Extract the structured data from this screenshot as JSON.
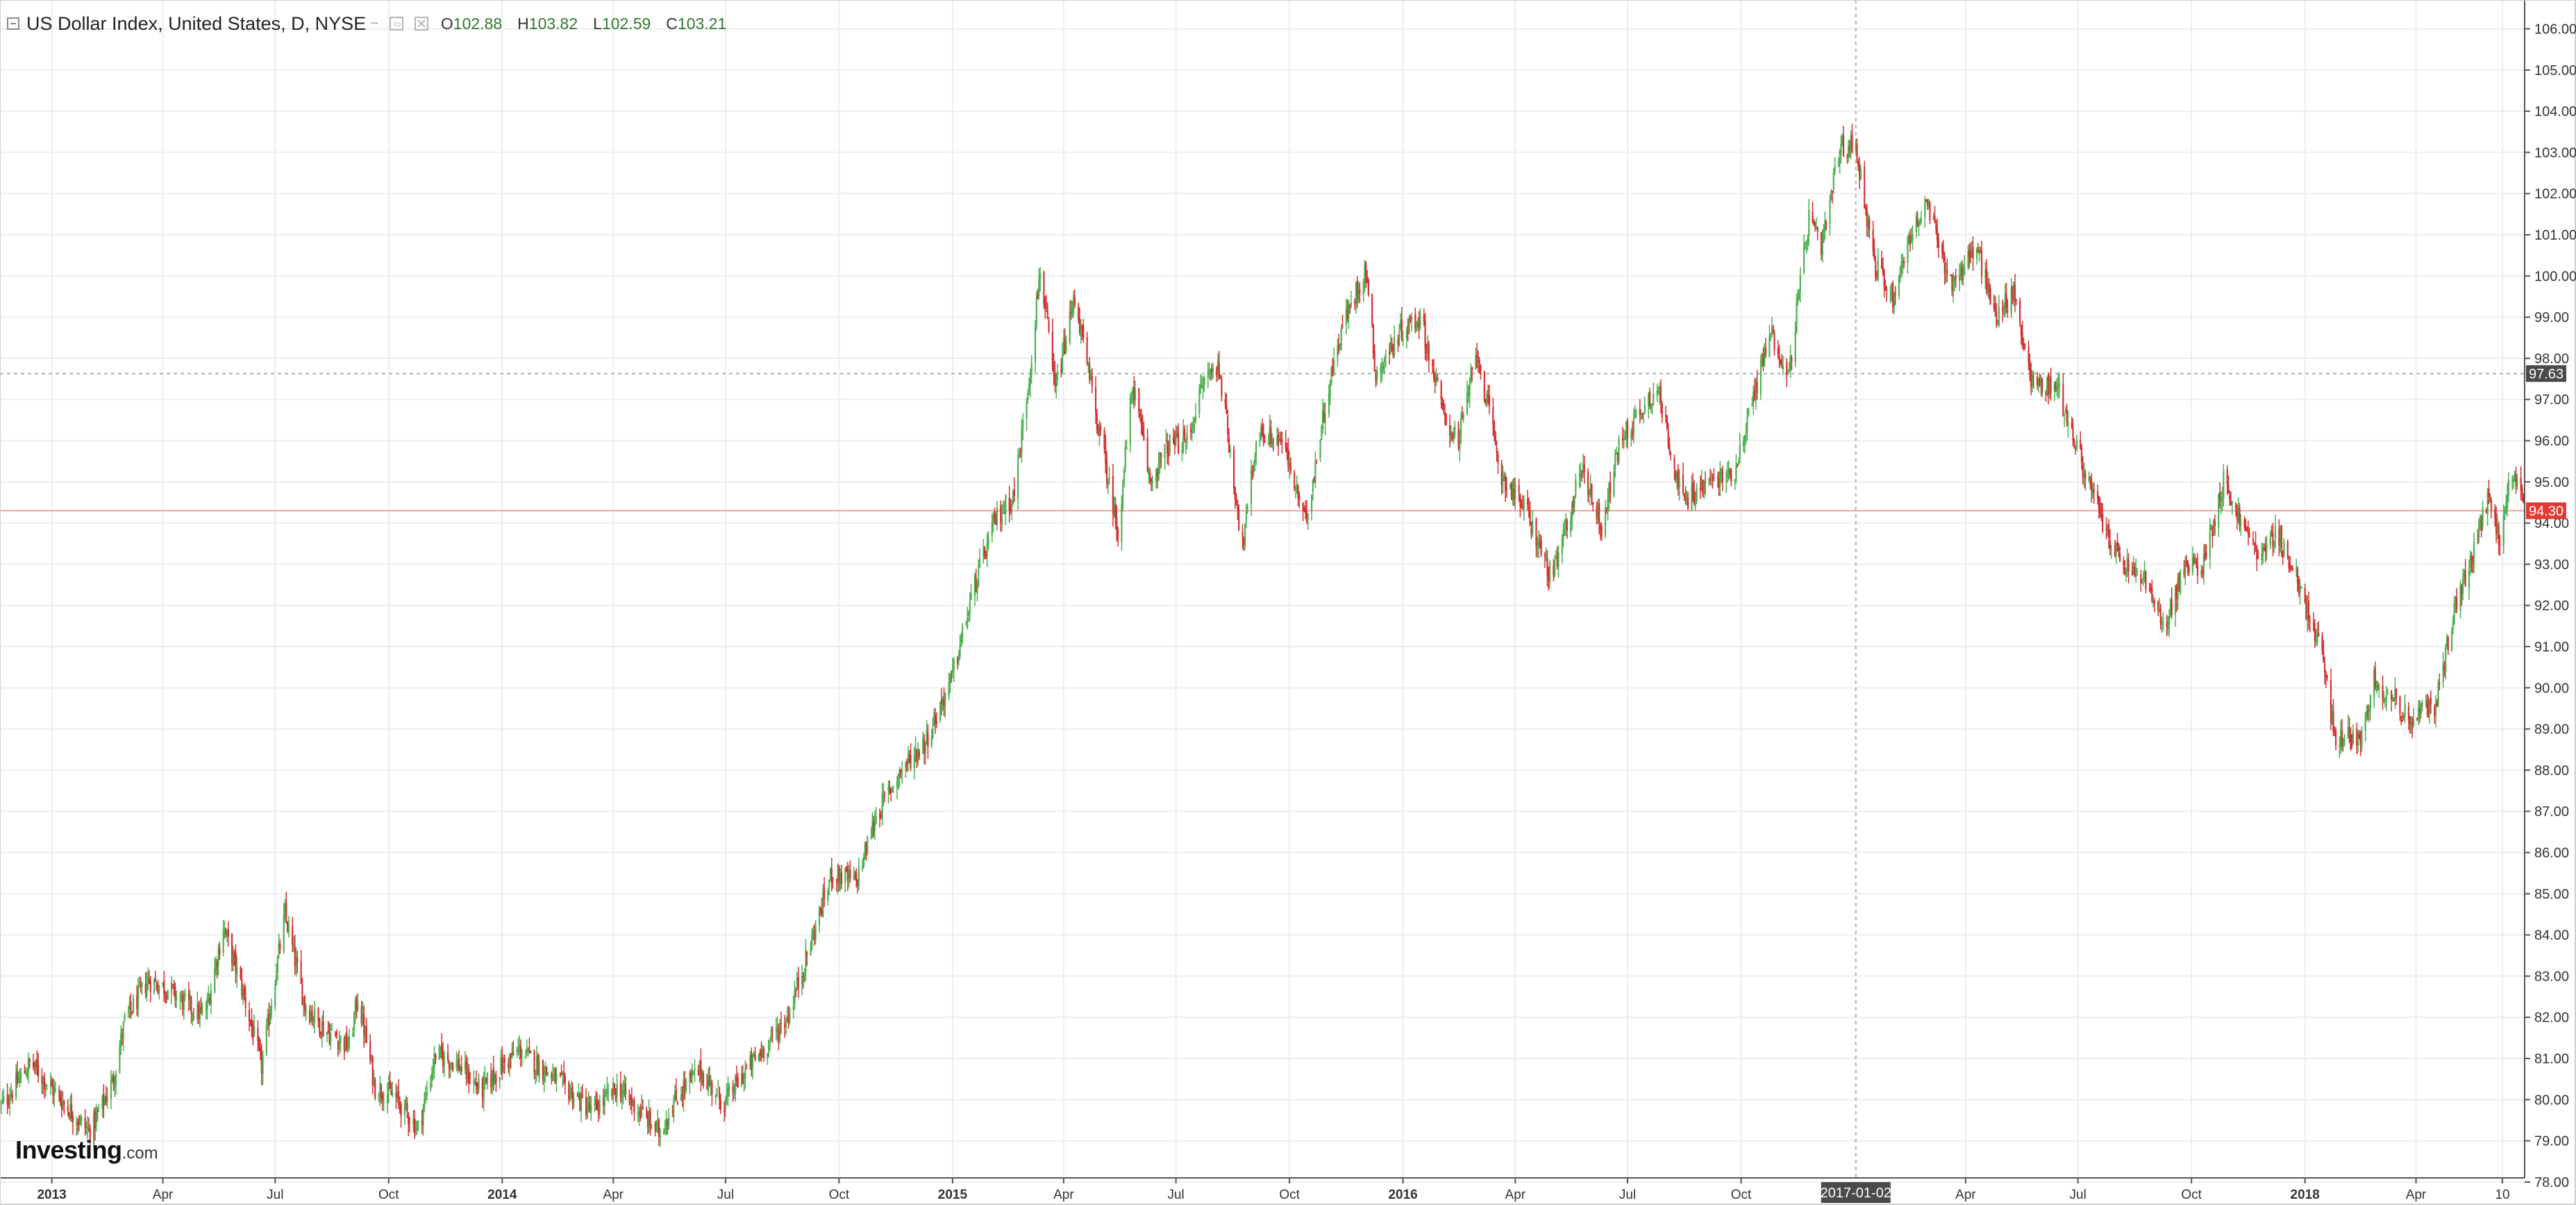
{
  "header": {
    "title": "US Dollar Index, United States, D, NYSE",
    "title_suffix": "~",
    "ohlc": [
      {
        "key": "O",
        "value": "102.88"
      },
      {
        "key": "H",
        "value": "103.82"
      },
      {
        "key": "L",
        "value": "102.59"
      },
      {
        "key": "C",
        "value": "103.21"
      }
    ]
  },
  "logo": {
    "brand": "Investing",
    "domain": ".com"
  },
  "colors": {
    "up": "#4caf50",
    "down": "#d32f2f",
    "grid": "#eeeeee",
    "last_price_line": "#f5a3a3",
    "last_price_bg": "#e53935",
    "crosshair_label_bg": "#4a4a4a"
  },
  "chart_data": {
    "type": "candlestick",
    "title": "US Dollar Index, United States, D, NYSE",
    "x_tick_labels": [
      {
        "label": "2013",
        "date": "2013-01-01",
        "bold": true
      },
      {
        "label": "Apr",
        "date": "2013-04-01"
      },
      {
        "label": "Jul",
        "date": "2013-07-01"
      },
      {
        "label": "Oct",
        "date": "2013-10-01"
      },
      {
        "label": "2014",
        "date": "2014-01-01",
        "bold": true
      },
      {
        "label": "Apr",
        "date": "2014-04-01"
      },
      {
        "label": "Jul",
        "date": "2014-07-01"
      },
      {
        "label": "Oct",
        "date": "2014-10-01"
      },
      {
        "label": "2015",
        "date": "2015-01-01",
        "bold": true
      },
      {
        "label": "Apr",
        "date": "2015-04-01"
      },
      {
        "label": "Jul",
        "date": "2015-07-01"
      },
      {
        "label": "Oct",
        "date": "2015-10-01"
      },
      {
        "label": "2016",
        "date": "2016-01-01",
        "bold": true
      },
      {
        "label": "Apr",
        "date": "2016-04-01"
      },
      {
        "label": "Jul",
        "date": "2016-07-01"
      },
      {
        "label": "Oct",
        "date": "2016-10-01"
      },
      {
        "label": "Apr",
        "date": "2017-04-01"
      },
      {
        "label": "Jul",
        "date": "2017-07-01"
      },
      {
        "label": "Oct",
        "date": "2017-10-01"
      },
      {
        "label": "2018",
        "date": "2018-01-01",
        "bold": true
      },
      {
        "label": "Apr",
        "date": "2018-04-01"
      },
      {
        "label": "10",
        "date": "2018-06-10"
      }
    ],
    "x_range": [
      "2012-11-20",
      "2018-06-28"
    ],
    "y_range": [
      78.1,
      106.7
    ],
    "y_ticks": [
      "78.00",
      "79.00",
      "80.00",
      "81.00",
      "82.00",
      "83.00",
      "84.00",
      "85.00",
      "86.00",
      "87.00",
      "88.00",
      "89.00",
      "90.00",
      "91.00",
      "92.00",
      "93.00",
      "94.00",
      "95.00",
      "96.00",
      "97.00",
      "98.00",
      "99.00",
      "100.00",
      "101.00",
      "102.00",
      "103.00",
      "104.00",
      "105.00",
      "106.00"
    ],
    "last_price": "94.30",
    "crosshair": {
      "date": "2017-01-02",
      "date_label": "2017-01-02",
      "price": "97.63"
    },
    "path_anchors": [
      [
        "2012-11-20",
        79.8
      ],
      [
        "2012-12-15",
        80.9
      ],
      [
        "2012-12-31",
        80.3
      ],
      [
        "2013-01-20",
        79.6
      ],
      [
        "2013-02-01",
        79.2
      ],
      [
        "2013-02-20",
        80.5
      ],
      [
        "2013-03-01",
        81.9
      ],
      [
        "2013-03-20",
        82.9
      ],
      [
        "2013-04-05",
        82.7
      ],
      [
        "2013-04-20",
        82.3
      ],
      [
        "2013-05-05",
        82.0
      ],
      [
        "2013-05-20",
        84.2
      ],
      [
        "2013-06-05",
        82.6
      ],
      [
        "2013-06-20",
        80.8
      ],
      [
        "2013-07-01",
        83.0
      ],
      [
        "2013-07-09",
        84.5
      ],
      [
        "2013-07-25",
        82.3
      ],
      [
        "2013-08-10",
        81.7
      ],
      [
        "2013-08-30",
        81.3
      ],
      [
        "2013-09-06",
        82.5
      ],
      [
        "2013-09-20",
        80.3
      ],
      [
        "2013-10-05",
        80.1
      ],
      [
        "2013-10-25",
        79.3
      ],
      [
        "2013-11-08",
        81.1
      ],
      [
        "2013-11-25",
        80.9
      ],
      [
        "2013-12-15",
        80.2
      ],
      [
        "2013-12-31",
        80.8
      ],
      [
        "2014-01-15",
        81.2
      ],
      [
        "2014-02-05",
        80.7
      ],
      [
        "2014-02-25",
        80.2
      ],
      [
        "2014-03-15",
        79.7
      ],
      [
        "2014-04-05",
        80.3
      ],
      [
        "2014-04-20",
        79.8
      ],
      [
        "2014-05-08",
        79.2
      ],
      [
        "2014-05-25",
        80.2
      ],
      [
        "2014-06-10",
        80.7
      ],
      [
        "2014-06-30",
        79.9
      ],
      [
        "2014-07-15",
        80.6
      ],
      [
        "2014-08-05",
        81.4
      ],
      [
        "2014-08-20",
        82.0
      ],
      [
        "2014-09-05",
        83.5
      ],
      [
        "2014-09-25",
        85.5
      ],
      [
        "2014-10-15",
        85.3
      ],
      [
        "2014-10-31",
        86.9
      ],
      [
        "2014-11-20",
        88.0
      ],
      [
        "2014-12-10",
        88.7
      ],
      [
        "2014-12-31",
        90.2
      ],
      [
        "2015-01-20",
        92.6
      ],
      [
        "2015-02-05",
        94.1
      ],
      [
        "2015-02-20",
        94.7
      ],
      [
        "2015-03-05",
        97.8
      ],
      [
        "2015-03-13",
        100.2
      ],
      [
        "2015-03-25",
        97.2
      ],
      [
        "2015-04-10",
        99.5
      ],
      [
        "2015-04-25",
        97.0
      ],
      [
        "2015-05-15",
        93.8
      ],
      [
        "2015-05-27",
        97.4
      ],
      [
        "2015-06-10",
        95.0
      ],
      [
        "2015-06-25",
        95.9
      ],
      [
        "2015-07-10",
        96.0
      ],
      [
        "2015-07-25",
        97.6
      ],
      [
        "2015-08-05",
        97.8
      ],
      [
        "2015-08-24",
        93.4
      ],
      [
        "2015-09-05",
        96.2
      ],
      [
        "2015-09-25",
        96.0
      ],
      [
        "2015-10-14",
        94.0
      ],
      [
        "2015-10-30",
        96.9
      ],
      [
        "2015-11-12",
        98.7
      ],
      [
        "2015-12-02",
        100.2
      ],
      [
        "2015-12-10",
        97.6
      ],
      [
        "2015-12-31",
        98.7
      ],
      [
        "2016-01-15",
        99.0
      ],
      [
        "2016-02-03",
        96.6
      ],
      [
        "2016-02-15",
        96.0
      ],
      [
        "2016-03-01",
        98.2
      ],
      [
        "2016-03-20",
        95.2
      ],
      [
        "2016-04-10",
        94.3
      ],
      [
        "2016-05-01",
        92.6
      ],
      [
        "2016-05-25",
        95.4
      ],
      [
        "2016-06-10",
        93.9
      ],
      [
        "2016-06-25",
        96.0
      ],
      [
        "2016-07-25",
        97.3
      ],
      [
        "2016-08-15",
        94.5
      ],
      [
        "2016-09-05",
        95.0
      ],
      [
        "2016-09-25",
        95.2
      ],
      [
        "2016-10-25",
        98.7
      ],
      [
        "2016-11-08",
        97.5
      ],
      [
        "2016-11-25",
        101.4
      ],
      [
        "2016-12-05",
        100.6
      ],
      [
        "2016-12-20",
        103.1
      ],
      [
        "2017-01-02",
        103.2
      ],
      [
        "2017-01-17",
        100.3
      ],
      [
        "2017-02-01",
        99.5
      ],
      [
        "2017-02-15",
        101.0
      ],
      [
        "2017-03-01",
        101.7
      ],
      [
        "2017-03-20",
        99.8
      ],
      [
        "2017-04-10",
        100.7
      ],
      [
        "2017-04-25",
        99.0
      ],
      [
        "2017-05-10",
        99.6
      ],
      [
        "2017-05-25",
        97.4
      ],
      [
        "2017-06-15",
        97.3
      ],
      [
        "2017-06-30",
        95.8
      ],
      [
        "2017-07-20",
        94.1
      ],
      [
        "2017-08-05",
        93.0
      ],
      [
        "2017-08-25",
        92.6
      ],
      [
        "2017-09-08",
        91.4
      ],
      [
        "2017-09-25",
        92.9
      ],
      [
        "2017-10-10",
        93.0
      ],
      [
        "2017-10-27",
        95.0
      ],
      [
        "2017-11-15",
        93.7
      ],
      [
        "2017-11-27",
        93.2
      ],
      [
        "2017-12-10",
        93.8
      ],
      [
        "2017-12-31",
        92.1
      ],
      [
        "2018-01-15",
        90.8
      ],
      [
        "2018-01-25",
        88.8
      ],
      [
        "2018-02-15",
        88.8
      ],
      [
        "2018-02-25",
        90.2
      ],
      [
        "2018-03-15",
        89.7
      ],
      [
        "2018-03-27",
        89.2
      ],
      [
        "2018-04-17",
        89.6
      ],
      [
        "2018-05-01",
        91.8
      ],
      [
        "2018-05-15",
        93.0
      ],
      [
        "2018-05-29",
        94.6
      ],
      [
        "2018-06-08",
        93.6
      ],
      [
        "2018-06-14",
        94.8
      ],
      [
        "2018-06-21",
        95.0
      ],
      [
        "2018-06-27",
        94.3
      ]
    ],
    "grid": true
  }
}
